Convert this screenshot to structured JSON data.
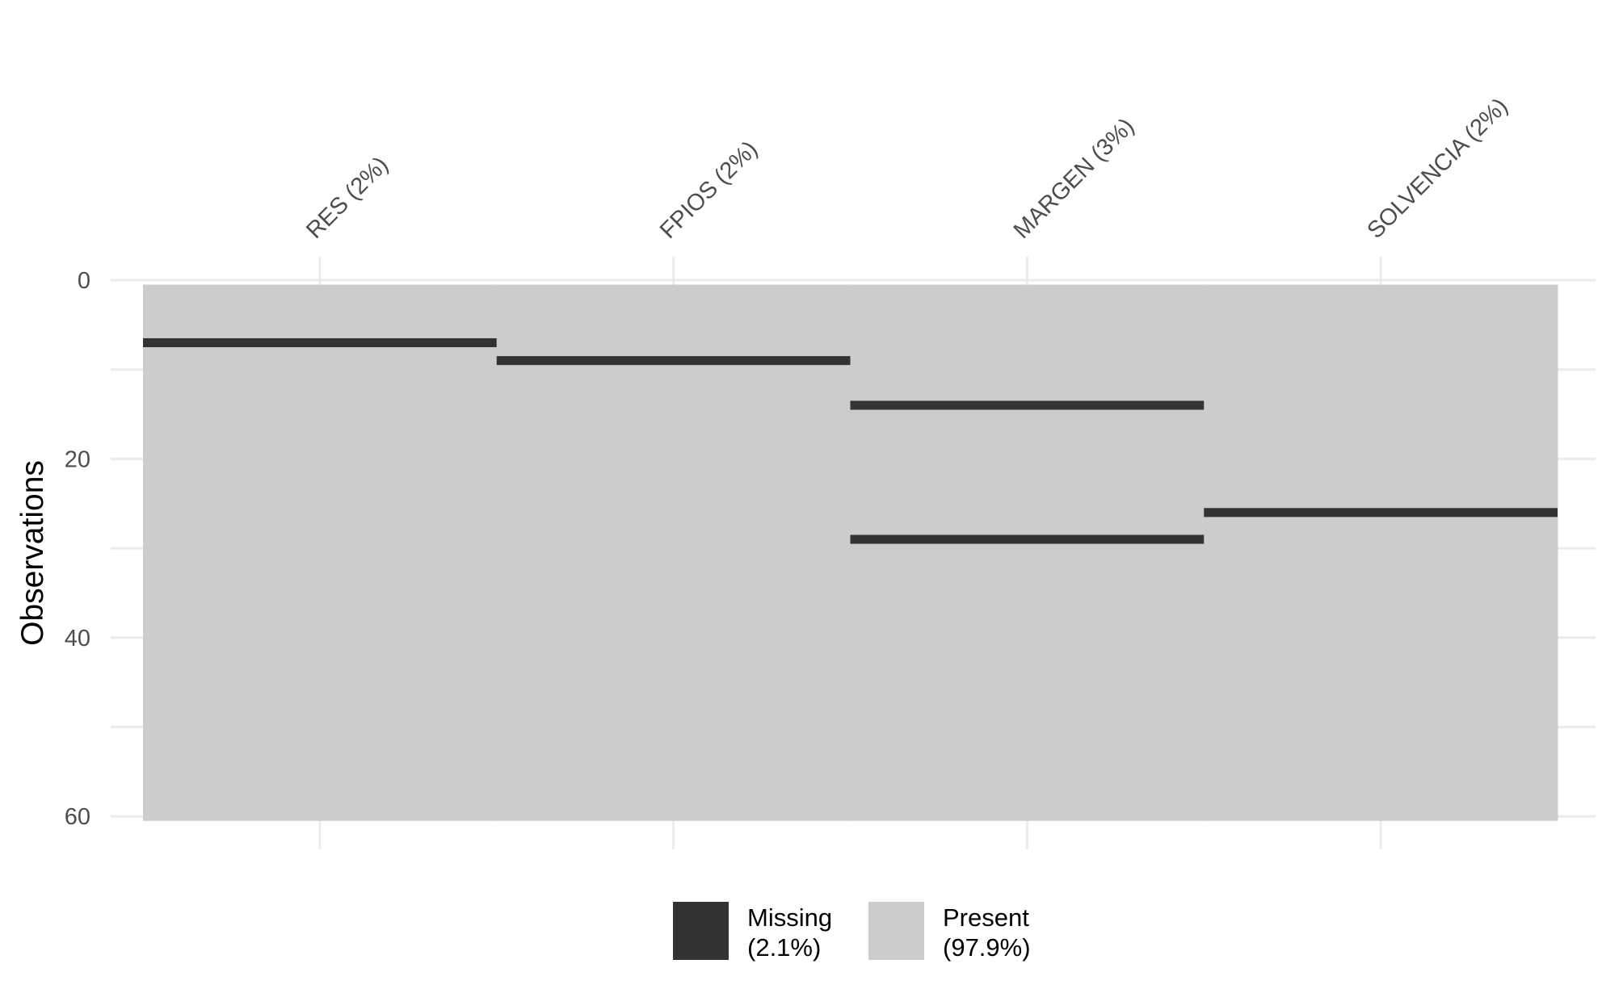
{
  "chart_data": {
    "type": "heatmap",
    "title": "",
    "xlabel": "",
    "ylabel": "Observations",
    "n_observations": 60,
    "ylim": [
      0,
      60
    ],
    "y_ticks": [
      0,
      20,
      40,
      60
    ],
    "x_axis_position": "top",
    "grid": true,
    "variables": [
      {
        "label": "RES (2%)",
        "missing_rows": [
          7
        ]
      },
      {
        "label": "FPIOS (2%)",
        "missing_rows": [
          9
        ]
      },
      {
        "label": "MARGEN (3%)",
        "missing_rows": [
          14,
          29
        ]
      },
      {
        "label": "SOLVENCIA (2%)",
        "missing_rows": [
          26
        ]
      }
    ],
    "legend": {
      "position": "bottom",
      "items": [
        {
          "line1": "Missing",
          "line2": "(2.1%)",
          "color": "#333333"
        },
        {
          "line1": "Present",
          "line2": "(97.9%)",
          "color": "#cccccc"
        }
      ]
    }
  }
}
